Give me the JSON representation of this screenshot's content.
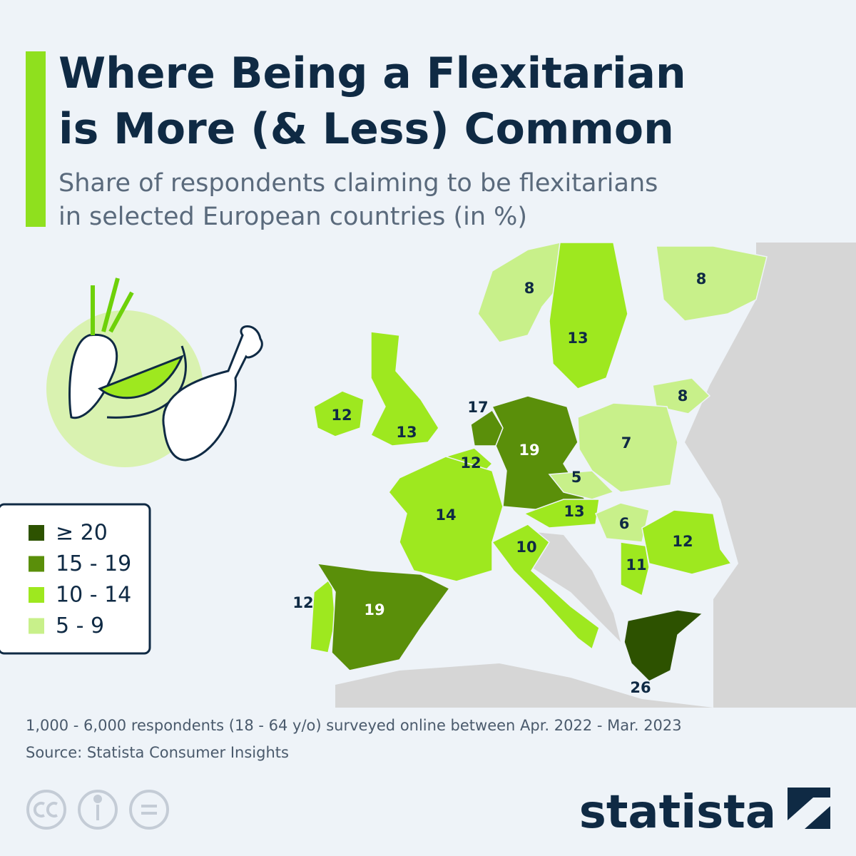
{
  "header": {
    "title": [
      "Where Being a Flexitarian",
      "is More (& Less) Common"
    ],
    "subtitle": [
      "Share of respondents claiming to be flexitarians",
      "in selected European countries (in %)"
    ]
  },
  "map": {
    "countries": [
      {
        "value": 8,
        "color": "#c8f08a"
      },
      {
        "value": 8,
        "color": "#c8f08a"
      },
      {
        "value": 13,
        "color": "#9ee81f"
      },
      {
        "value": 12,
        "color": "#9ee81f"
      },
      {
        "value": 13,
        "color": "#9ee81f"
      },
      {
        "value": 17,
        "color": "#5a8f0a"
      },
      {
        "value": 12,
        "color": "#9ee81f"
      },
      {
        "value": 19,
        "color": "#5a8f0a"
      },
      {
        "value": 8,
        "color": "#c8f08a"
      },
      {
        "value": 7,
        "color": "#c8f08a"
      },
      {
        "value": 5,
        "color": "#c8f08a"
      },
      {
        "value": 13,
        "color": "#9ee81f"
      },
      {
        "value": 6,
        "color": "#c8f08a"
      },
      {
        "value": 12,
        "color": "#9ee81f"
      },
      {
        "value": 11,
        "color": "#9ee81f"
      },
      {
        "value": 14,
        "color": "#9ee81f"
      },
      {
        "value": 10,
        "color": "#9ee81f"
      },
      {
        "value": 12,
        "color": "#9ee81f"
      },
      {
        "value": 19,
        "color": "#5a8f0a"
      },
      {
        "value": 26,
        "color": "#2d5200"
      }
    ],
    "legend": [
      {
        "label": "≥ 20",
        "color": "#2d5200"
      },
      {
        "label": "15 - 19",
        "color": "#5a8f0a"
      },
      {
        "label": "10 - 14",
        "color": "#9ee81f"
      },
      {
        "label": "5 - 9",
        "color": "#c8f08a"
      }
    ]
  },
  "footer": {
    "note": "1,000 - 6,000 respondents (18 - 64 y/o) surveyed online between Apr. 2022 - Mar. 2023",
    "source": "Source: Statista Consumer Insights",
    "brand": "statista"
  }
}
